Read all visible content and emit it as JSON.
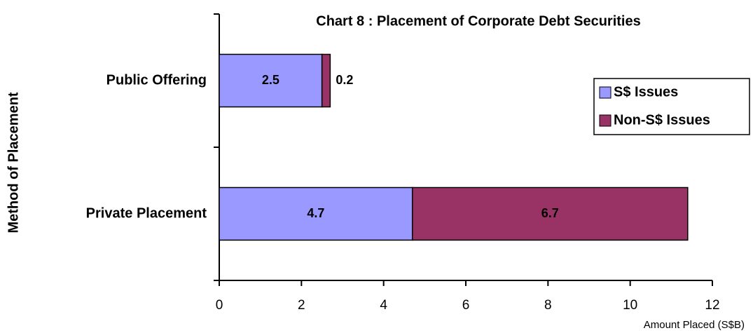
{
  "chart_data": {
    "type": "bar",
    "orientation": "horizontal",
    "stacked": true,
    "title": "Chart 8 : Placement of Corporate Debt Securities",
    "x_label": "Amount Placed (S$B)",
    "y_label": "Method of Placement",
    "categories": [
      "Public Offering",
      "Private Placement"
    ],
    "series": [
      {
        "name": "S$ Issues",
        "color": "#9999ff",
        "values": [
          2.5,
          4.7
        ]
      },
      {
        "name": "Non-S$ Issues",
        "color": "#993366",
        "values": [
          0.2,
          6.7
        ]
      }
    ],
    "xlim": [
      0,
      12
    ],
    "xticks": [
      0,
      2,
      4,
      6,
      8,
      10,
      12
    ],
    "grid": false,
    "legend": "right"
  }
}
